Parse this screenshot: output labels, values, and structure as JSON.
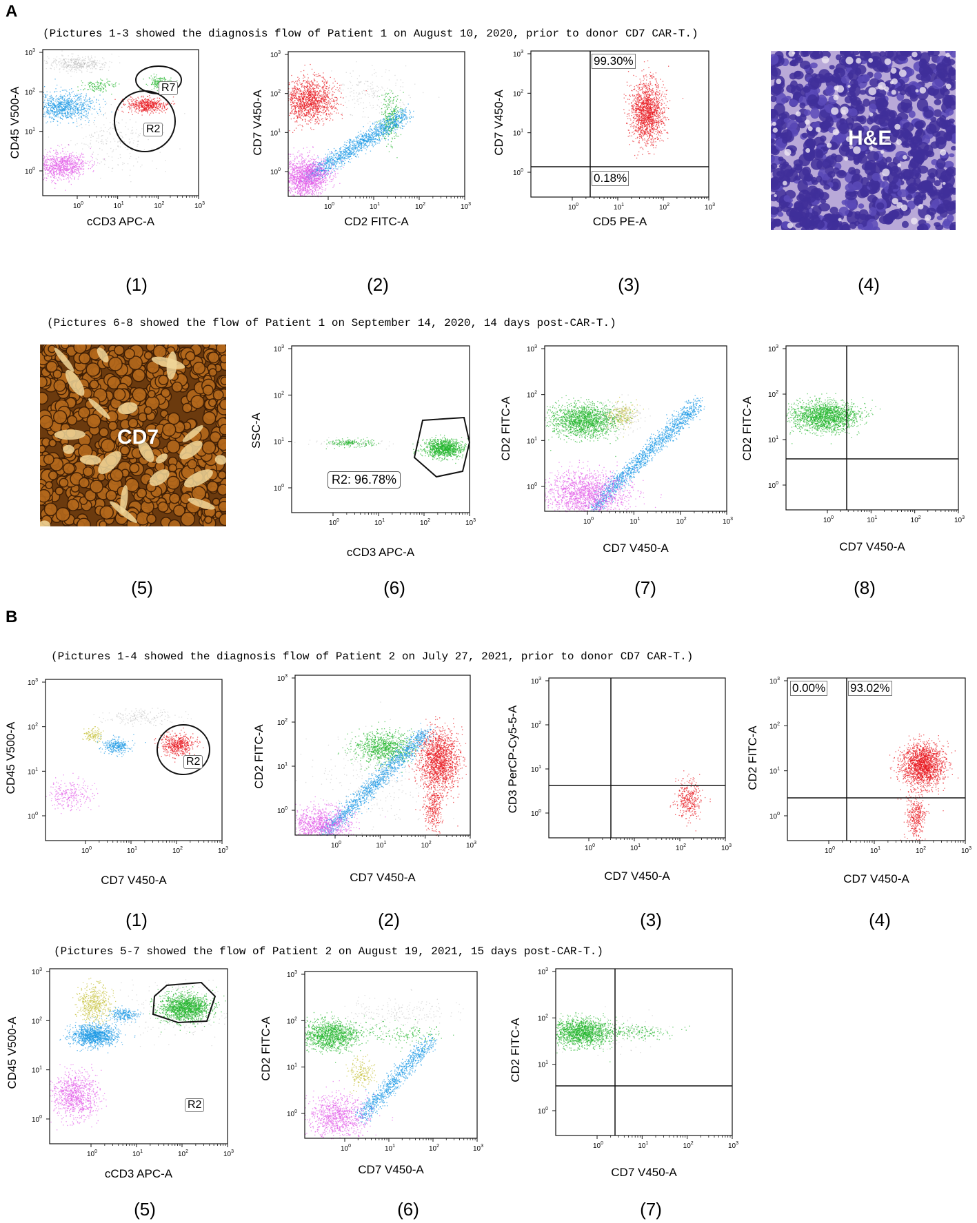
{
  "panel_a": {
    "letter": "A",
    "caption_top": "(Pictures 1-3 showed the diagnosis flow of Patient 1 on August 10, 2020, prior to donor CD7 CAR-T.)",
    "caption_bottom": "(Pictures 6-8 showed the flow of Patient 1 on September 14, 2020, 14 days post-CAR-T.)",
    "figures": [
      {
        "num": "(1)",
        "xlabel": "cCD3 APC-A",
        "ylabel": "CD45 V500-A",
        "gates": [
          "R7",
          "R2"
        ]
      },
      {
        "num": "(2)",
        "xlabel": "CD2 FITC-A",
        "ylabel": "CD7 V450-A"
      },
      {
        "num": "(3)",
        "xlabel": "CD5 PE-A",
        "ylabel": "CD7 V450-A",
        "quadrants": [
          "99.30%",
          "0.18%"
        ]
      },
      {
        "num": "(4)",
        "image_label": "H&E"
      },
      {
        "num": "(5)",
        "image_label": "CD7"
      },
      {
        "num": "(6)",
        "xlabel": "cCD3 APC-A",
        "ylabel": "SSC-A",
        "gates": [
          "R2: 96.78%"
        ]
      },
      {
        "num": "(7)",
        "xlabel": "CD7 V450-A",
        "ylabel": "CD2 FITC-A"
      },
      {
        "num": "(8)",
        "xlabel": "CD7 V450-A",
        "ylabel": "CD2 FITC-A"
      }
    ]
  },
  "panel_b": {
    "letter": "B",
    "caption_top": "(Pictures 1-4 showed the diagnosis flow of Patient 2 on July 27, 2021, prior to donor CD7 CAR-T.)",
    "caption_bottom": "(Pictures 5-7 showed the flow of Patient 2 on August 19, 2021, 15 days post-CAR-T.)",
    "figures": [
      {
        "num": "(1)",
        "xlabel": "CD7 V450-A",
        "ylabel": "CD45 V500-A",
        "gates": [
          "R2"
        ]
      },
      {
        "num": "(2)",
        "xlabel": "CD7 V450-A",
        "ylabel": "CD2 FITC-A"
      },
      {
        "num": "(3)",
        "xlabel": "CD7 V450-A",
        "ylabel": "CD3 PerCP-Cy5-5-A"
      },
      {
        "num": "(4)",
        "xlabel": "CD7 V450-A",
        "ylabel": "CD2 FITC-A",
        "quadrants": [
          "0.00%",
          "93.02%"
        ]
      },
      {
        "num": "(5)",
        "xlabel": "cCD3 APC-A",
        "ylabel": "CD45 V500-A",
        "gates": [
          "R2"
        ]
      },
      {
        "num": "(6)",
        "xlabel": "CD7 V450-A",
        "ylabel": "CD2 FITC-A"
      },
      {
        "num": "(7)",
        "xlabel": "CD7 V450-A",
        "ylabel": "CD2 FITC-A"
      }
    ]
  },
  "ticks": {
    "t0": "10",
    "e0": "0",
    "e1": "1",
    "e2": "2",
    "e3": "3"
  },
  "colors": {
    "red": "#e8141b",
    "green": "#1fb52a",
    "blue": "#1e9ae6",
    "magenta": "#e25be8",
    "olive": "#c6c23a",
    "grey": "#9a9a9a"
  }
}
